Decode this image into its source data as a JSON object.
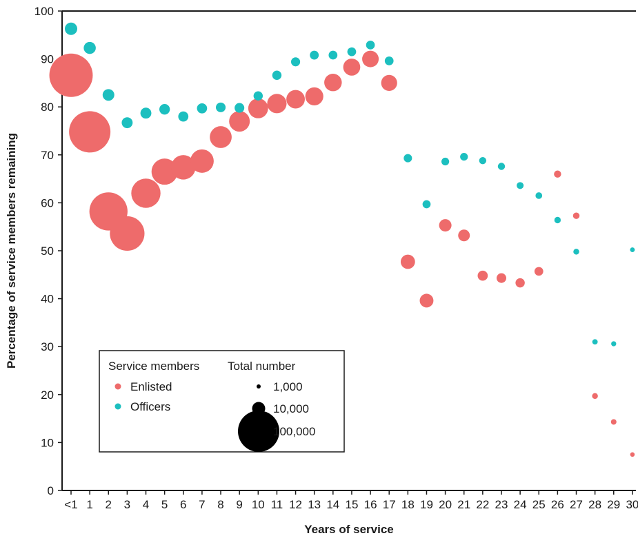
{
  "chart_data": {
    "type": "scatter",
    "xlabel": "Years of service",
    "ylabel": "Percentage of service members remaining",
    "ylim": [
      0,
      100
    ],
    "yticks": [
      0,
      10,
      20,
      30,
      40,
      50,
      60,
      70,
      80,
      90,
      100
    ],
    "categories": [
      "<1",
      "1",
      "2",
      "3",
      "4",
      "5",
      "6",
      "7",
      "8",
      "9",
      "10",
      "11",
      "12",
      "13",
      "14",
      "15",
      "16",
      "17",
      "18",
      "19",
      "20",
      "21",
      "22",
      "23",
      "24",
      "25",
      "26",
      "27",
      "28",
      "29",
      "30"
    ],
    "size_encoding": "Total number",
    "series": [
      {
        "name": "Enlisted",
        "color": "#ee6b6b",
        "values": [
          86.6,
          74.8,
          58.2,
          53.6,
          62.0,
          66.5,
          67.4,
          68.7,
          73.7,
          77.0,
          79.7,
          80.7,
          81.6,
          82.2,
          85.1,
          88.3,
          90.0,
          85.0,
          47.7,
          39.6,
          55.3,
          53.2,
          44.8,
          44.3,
          43.3,
          45.7,
          66.0,
          57.3,
          19.7,
          14.3,
          7.5
        ],
        "counts": [
          110000,
          100000,
          85000,
          70000,
          50000,
          40000,
          35000,
          32000,
          28000,
          25000,
          23000,
          22000,
          20000,
          19000,
          18000,
          17000,
          16000,
          15000,
          12000,
          11000,
          9000,
          8000,
          6000,
          5500,
          5000,
          4500,
          3000,
          2500,
          2000,
          1800,
          1200
        ]
      },
      {
        "name": "Officers",
        "color": "#1cbfbf",
        "values": [
          96.3,
          92.3,
          82.5,
          76.7,
          78.7,
          79.5,
          78.0,
          79.7,
          79.9,
          79.8,
          82.3,
          86.6,
          89.4,
          90.8,
          90.8,
          91.5,
          92.9,
          89.6,
          69.3,
          59.7,
          68.6,
          69.6,
          68.8,
          67.6,
          63.6,
          61.5,
          56.4,
          49.8,
          31.0,
          30.6,
          50.2
        ],
        "counts": [
          9000,
          8500,
          8000,
          7000,
          7000,
          6500,
          6000,
          6000,
          5500,
          5500,
          5000,
          5000,
          4800,
          4600,
          4500,
          4500,
          4500,
          4500,
          4000,
          3800,
          3500,
          3500,
          3000,
          3000,
          2800,
          2600,
          2400,
          2000,
          1700,
          1500,
          1300
        ]
      }
    ],
    "legend": {
      "placement": "bottom-left",
      "group_title": "Service members",
      "size_title": "Total number",
      "size_entries": [
        {
          "label": "1,000",
          "count": 1000
        },
        {
          "label": "10,000",
          "count": 10000
        },
        {
          "label": "100,000",
          "count": 100000
        }
      ]
    },
    "grid": false
  }
}
